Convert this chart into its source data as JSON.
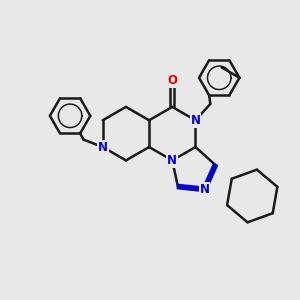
{
  "background_color": "#e8e8e8",
  "bond_color": "#1a1a1a",
  "nitrogen_color": "#0000ee",
  "oxygen_color": "#ee0000",
  "bond_width": 1.8,
  "figsize": [
    3.0,
    3.0
  ],
  "dpi": 100,
  "xlim": [
    0,
    10
  ],
  "ylim": [
    0,
    10
  ]
}
